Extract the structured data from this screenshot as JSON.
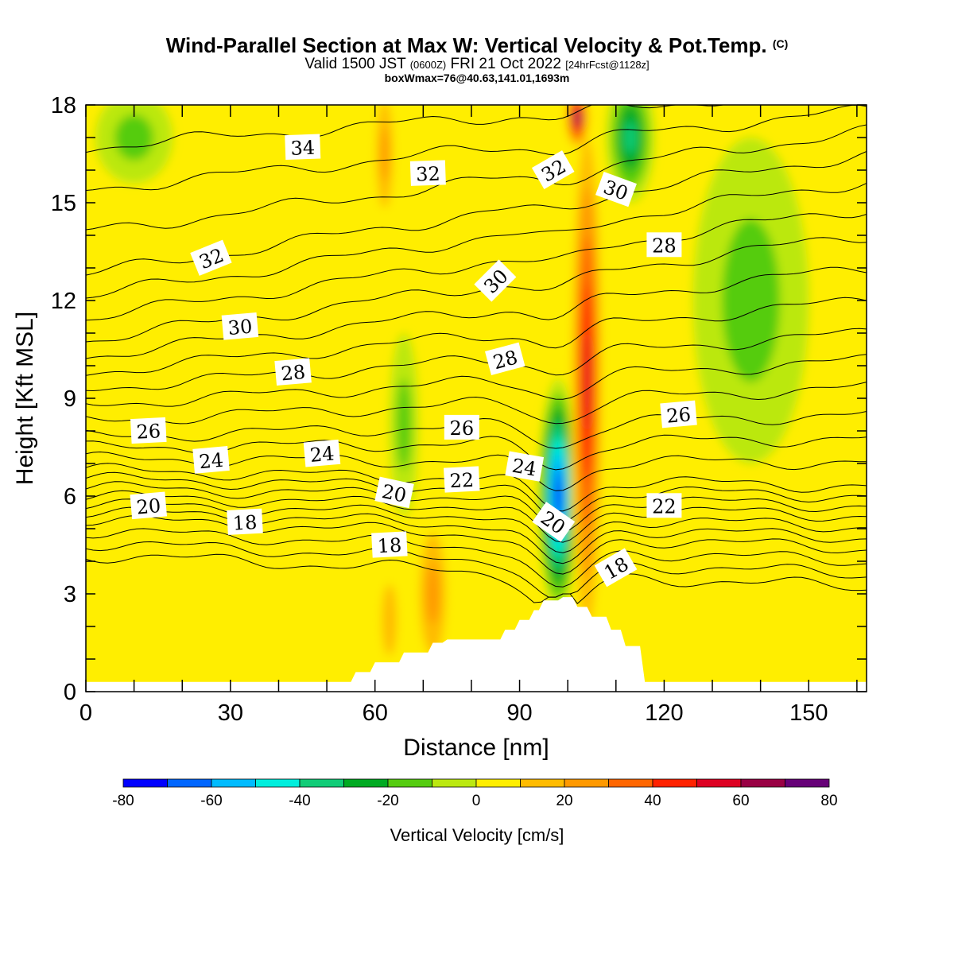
{
  "header": {
    "title": "Wind-Parallel Section at Max W: Vertical Velocity & Pot.Temp.",
    "title_mark": "(C)",
    "valid_prefix": "Valid 1500 JST",
    "valid_z": "(0600Z)",
    "valid_date": "FRI 21 Oct 2022",
    "valid_fcst": "[24hrFcst@1128z]",
    "boxline": "boxWmax=76@40.63,141.01,1693m"
  },
  "chart_data": {
    "type": "heatmap",
    "subtype": "vertical cross-section: filled contours (vertical velocity) with line contours (potential temperature)",
    "xlabel": "Distance [nm]",
    "ylabel": "Height [Kft MSL]",
    "xlim": [
      0,
      162
    ],
    "ylim": [
      0,
      18
    ],
    "x_ticks": [
      0,
      30,
      60,
      90,
      120,
      150
    ],
    "y_ticks": [
      0,
      3,
      6,
      9,
      12,
      15,
      18
    ],
    "grid": false,
    "colorbar": {
      "label": "Vertical Velocity [cm/s]",
      "placement": "bottom",
      "tick_labels": [
        "-80",
        "-60",
        "-40",
        "-20",
        "0",
        "20",
        "40",
        "60",
        "80"
      ],
      "levels": [
        -80,
        -70,
        -60,
        -50,
        -40,
        -30,
        -20,
        -10,
        0,
        10,
        20,
        30,
        40,
        50,
        60,
        70,
        80
      ],
      "colors": [
        "#0000ff",
        "#0066ff",
        "#00bbff",
        "#00eedd",
        "#11cc77",
        "#00aa22",
        "#55cc11",
        "#bbe811",
        "#ffee00",
        "#ffbb00",
        "#ff9900",
        "#ff6600",
        "#ff2200",
        "#dd0022",
        "#990044",
        "#660077"
      ]
    },
    "vv_features": [
      {
        "x": 98,
        "y": 6.0,
        "rx": 4,
        "ry": 3.6,
        "value": -76,
        "label": "downdraft core"
      },
      {
        "x": 104,
        "y": 9.5,
        "rx": 3.5,
        "ry": 9,
        "value": 60,
        "label": "updraft plume"
      },
      {
        "x": 102,
        "y": 17.6,
        "rx": 2.5,
        "ry": 1.0,
        "value": 72,
        "label": "updraft top"
      },
      {
        "x": 113,
        "y": 17,
        "rx": 5,
        "ry": 2,
        "value": -35,
        "label": "sinking aloft"
      },
      {
        "x": 138,
        "y": 12,
        "rx": 12,
        "ry": 5,
        "value": -20,
        "label": "sinking east"
      },
      {
        "x": 72,
        "y": 3,
        "rx": 4,
        "ry": 2.8,
        "value": 25,
        "label": "weak ascent"
      },
      {
        "x": 63,
        "y": 2.2,
        "rx": 3,
        "ry": 2.2,
        "value": 18,
        "label": "weak ascent"
      },
      {
        "x": 66,
        "y": 8.2,
        "rx": 3,
        "ry": 2.8,
        "value": -18,
        "label": "weak sinking"
      },
      {
        "x": 10,
        "y": 17,
        "rx": 8,
        "ry": 1.4,
        "value": -15,
        "label": "weak sinking"
      },
      {
        "x": 62,
        "y": 16.5,
        "rx": 2.5,
        "ry": 2.5,
        "value": 22,
        "label": "weak ascent"
      }
    ],
    "terrain": {
      "x": [
        0,
        55,
        56,
        59,
        60,
        65,
        66,
        71,
        72,
        74,
        75,
        86,
        87,
        89,
        90,
        92,
        93,
        94,
        95,
        98,
        99,
        101,
        102,
        104,
        105,
        108,
        109,
        111,
        112,
        115,
        116,
        162
      ],
      "z": [
        0.3,
        0.3,
        0.6,
        0.6,
        0.9,
        0.9,
        1.2,
        1.2,
        1.5,
        1.5,
        1.6,
        1.6,
        1.9,
        1.9,
        2.2,
        2.2,
        2.5,
        2.5,
        2.8,
        2.8,
        2.9,
        2.9,
        2.6,
        2.6,
        2.3,
        2.3,
        1.9,
        1.9,
        1.4,
        1.4,
        0.3,
        0.3
      ]
    },
    "theta_contours": [
      {
        "level": 18,
        "y_west": 4.2,
        "y_east": 3.2,
        "dip": 1.4
      },
      {
        "level": 20,
        "y_west": 5.3,
        "y_east": 4.4,
        "dip": 1.3
      },
      {
        "level": 22,
        "y_west": 6.0,
        "y_east": 5.4,
        "dip": 1.1
      },
      {
        "level": 24,
        "y_west": 6.8,
        "y_east": 6.3,
        "dip": 0.9
      },
      {
        "level": 26,
        "y_west": 7.8,
        "y_east": 8.5,
        "dip": 0.7
      },
      {
        "level": 28,
        "y_west": 9.3,
        "y_east": 11.0,
        "dip": 0.5
      },
      {
        "level": 30,
        "y_west": 10.8,
        "y_east": 14.0,
        "dip": 0.4
      },
      {
        "level": 32,
        "y_west": 12.8,
        "y_east": 16.5,
        "dip": 0.3
      },
      {
        "level": 34,
        "y_west": 16.7,
        "y_east": 18.5,
        "dip": 0.2
      }
    ],
    "contour_labels": [
      {
        "text": "34",
        "x": 45,
        "y": 16.7,
        "angle": -2
      },
      {
        "text": "32",
        "x": 71,
        "y": 15.9,
        "angle": -2
      },
      {
        "text": "32",
        "x": 97,
        "y": 16.0,
        "angle": -30
      },
      {
        "text": "30",
        "x": 110,
        "y": 15.4,
        "angle": 20
      },
      {
        "text": "28",
        "x": 120,
        "y": 13.7,
        "angle": 0
      },
      {
        "text": "32",
        "x": 26,
        "y": 13.3,
        "angle": -22
      },
      {
        "text": "30",
        "x": 85,
        "y": 12.6,
        "angle": -45
      },
      {
        "text": "30",
        "x": 32,
        "y": 11.2,
        "angle": -5
      },
      {
        "text": "28",
        "x": 43,
        "y": 9.8,
        "angle": -5
      },
      {
        "text": "28",
        "x": 87,
        "y": 10.2,
        "angle": -15
      },
      {
        "text": "26",
        "x": 13,
        "y": 8.0,
        "angle": -3
      },
      {
        "text": "26",
        "x": 78,
        "y": 8.1,
        "angle": 0
      },
      {
        "text": "26",
        "x": 123,
        "y": 8.5,
        "angle": -5
      },
      {
        "text": "24",
        "x": 26,
        "y": 7.1,
        "angle": -5
      },
      {
        "text": "24",
        "x": 49,
        "y": 7.3,
        "angle": -5
      },
      {
        "text": "24",
        "x": 91,
        "y": 6.9,
        "angle": 10
      },
      {
        "text": "22",
        "x": 78,
        "y": 6.5,
        "angle": -3
      },
      {
        "text": "22",
        "x": 120,
        "y": 5.7,
        "angle": 0
      },
      {
        "text": "20",
        "x": 13,
        "y": 5.7,
        "angle": -5
      },
      {
        "text": "20",
        "x": 64,
        "y": 6.1,
        "angle": 12
      },
      {
        "text": "20",
        "x": 97,
        "y": 5.2,
        "angle": 35
      },
      {
        "text": "18",
        "x": 33,
        "y": 5.2,
        "angle": -3
      },
      {
        "text": "18",
        "x": 63,
        "y": 4.5,
        "angle": -3
      },
      {
        "text": "18",
        "x": 110,
        "y": 3.8,
        "angle": -30
      }
    ]
  }
}
